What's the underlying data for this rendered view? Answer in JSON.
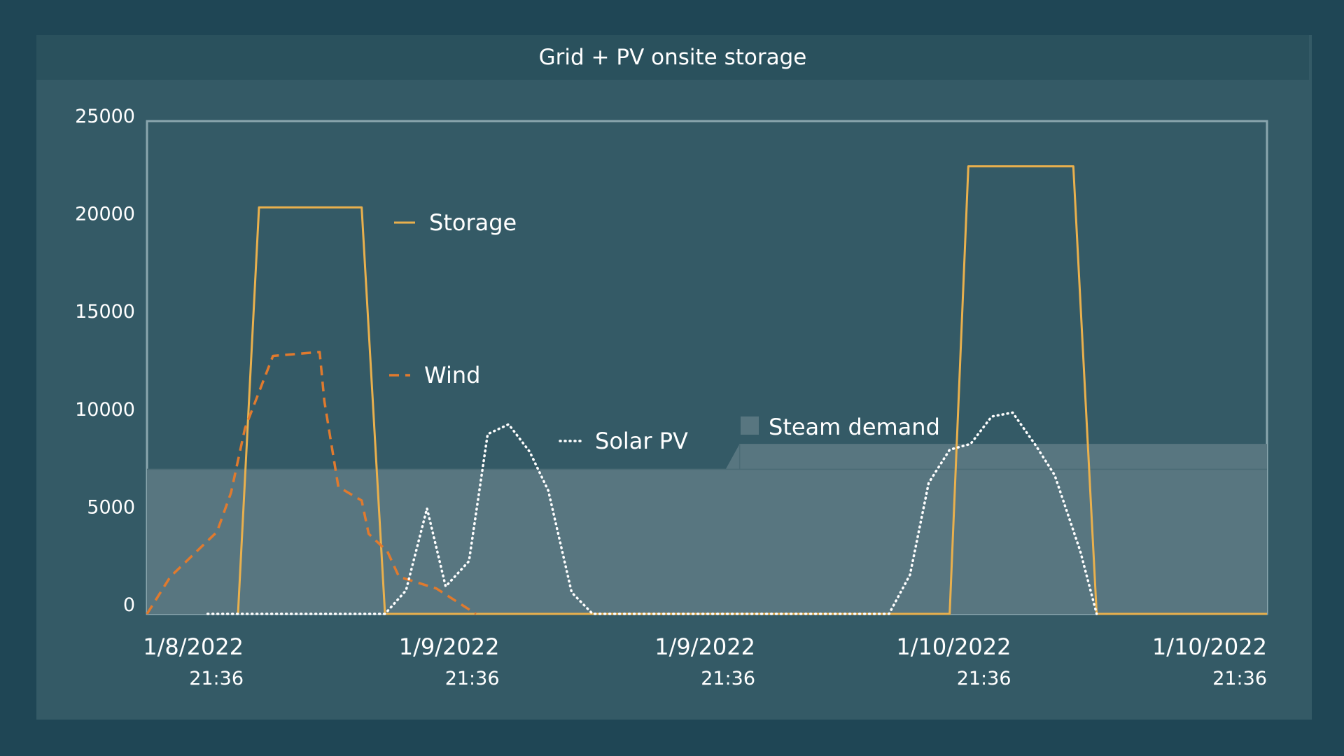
{
  "chart_data": {
    "type": "line",
    "title": "Grid + PV onsite storage",
    "ylim": [
      0,
      25000
    ],
    "y_ticks": [
      "25000",
      "20000",
      "15000",
      "10000",
      "5000",
      "0"
    ],
    "x_ticks": [
      {
        "date": "1/8/2022",
        "time": "21:36"
      },
      {
        "date": "1/9/2022",
        "time": "21:36"
      },
      {
        "date": "1/9/2022",
        "time": "21:36"
      },
      {
        "date": "1/10/2022",
        "time": "21:36"
      },
      {
        "date": "1/10/2022",
        "time": "21:36"
      }
    ],
    "x_range_days": [
      0,
      2.4
    ],
    "legend_placement": "inline",
    "series": [
      {
        "name": "Steam demand",
        "style": "area",
        "color": "#587680",
        "points": [
          [
            0,
            7400
          ],
          [
            1.24,
            7400
          ],
          [
            1.27,
            8700
          ],
          [
            2.4,
            8700
          ]
        ]
      },
      {
        "name": "Storage",
        "style": "solid",
        "color": "#e9b04d",
        "points": [
          [
            0.195,
            0
          ],
          [
            0.24,
            20800
          ],
          [
            0.46,
            20800
          ],
          [
            0.51,
            0
          ],
          [
            1.72,
            0
          ],
          [
            1.76,
            22900
          ],
          [
            1.985,
            22900
          ],
          [
            2.035,
            0
          ],
          [
            2.4,
            0
          ]
        ]
      },
      {
        "name": "Wind",
        "style": "dashed",
        "color": "#e07a2e",
        "points": [
          [
            0,
            0
          ],
          [
            0.05,
            1900
          ],
          [
            0.15,
            4200
          ],
          [
            0.18,
            6200
          ],
          [
            0.21,
            9500
          ],
          [
            0.27,
            13200
          ],
          [
            0.37,
            13400
          ],
          [
            0.38,
            10900
          ],
          [
            0.41,
            6500
          ],
          [
            0.46,
            5800
          ],
          [
            0.475,
            4100
          ],
          [
            0.515,
            3200
          ],
          [
            0.54,
            1900
          ],
          [
            0.62,
            1300
          ],
          [
            0.705,
            0
          ]
        ]
      },
      {
        "name": "Solar PV",
        "style": "dotted",
        "color": "#ffffff",
        "points": [
          [
            0.13,
            0
          ],
          [
            0.51,
            0
          ],
          [
            0.555,
            1200
          ],
          [
            0.6,
            5400
          ],
          [
            0.64,
            1400
          ],
          [
            0.69,
            2700
          ],
          [
            0.73,
            9200
          ],
          [
            0.775,
            9700
          ],
          [
            0.82,
            8300
          ],
          [
            0.86,
            6300
          ],
          [
            0.91,
            1100
          ],
          [
            0.955,
            0
          ],
          [
            1.59,
            0
          ],
          [
            1.635,
            2000
          ],
          [
            1.675,
            6700
          ],
          [
            1.72,
            8400
          ],
          [
            1.765,
            8700
          ],
          [
            1.81,
            10100
          ],
          [
            1.855,
            10300
          ],
          [
            1.905,
            8600
          ],
          [
            1.945,
            7100
          ],
          [
            2.0,
            3200
          ],
          [
            2.035,
            0
          ]
        ]
      }
    ],
    "legend_labels": [
      "Storage",
      "Wind",
      "Solar PV",
      "Steam demand"
    ]
  }
}
